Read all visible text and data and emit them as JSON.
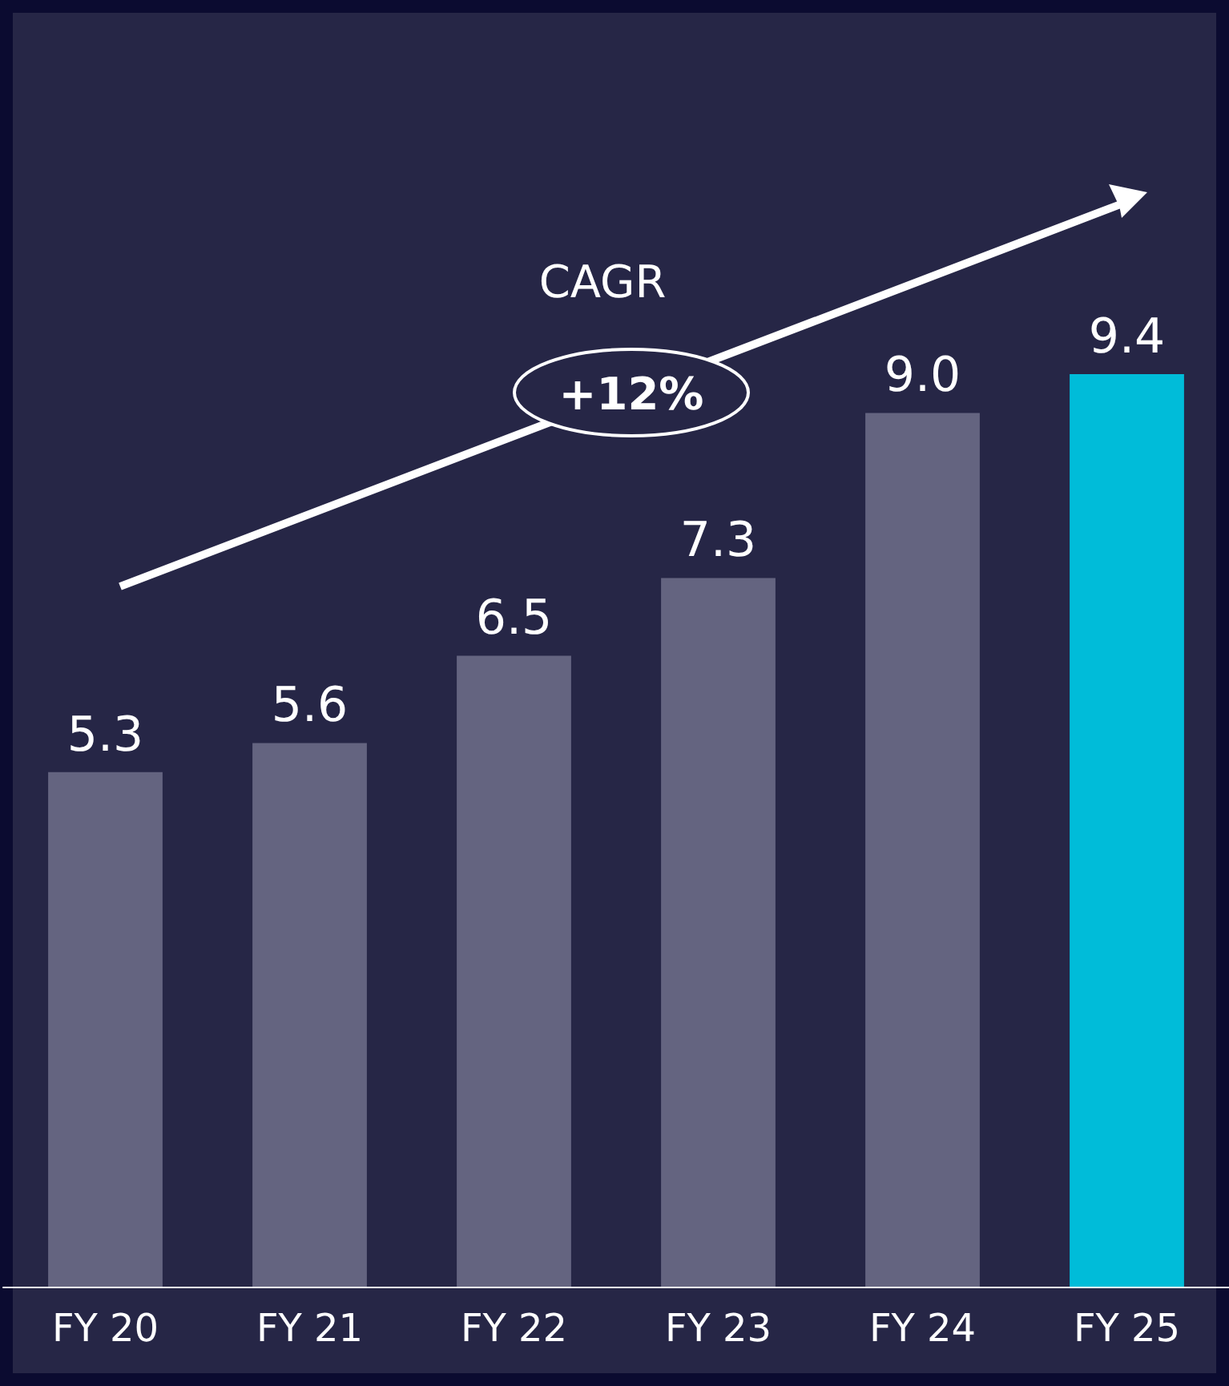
{
  "chart_data": {
    "type": "bar",
    "categories": [
      "FY 20",
      "FY 21",
      "FY 22",
      "FY 23",
      "FY 24",
      "FY 25"
    ],
    "values": [
      5.3,
      5.6,
      6.5,
      7.3,
      9.0,
      9.4
    ],
    "value_labels": [
      "5.3",
      "5.6",
      "6.5",
      "7.3",
      "9.0",
      "9.4"
    ],
    "colors": [
      "#646480",
      "#646480",
      "#646480",
      "#646480",
      "#646480",
      "#00bcd9"
    ],
    "annotations": [
      "CAGR",
      "+12%"
    ],
    "grid": false
  }
}
